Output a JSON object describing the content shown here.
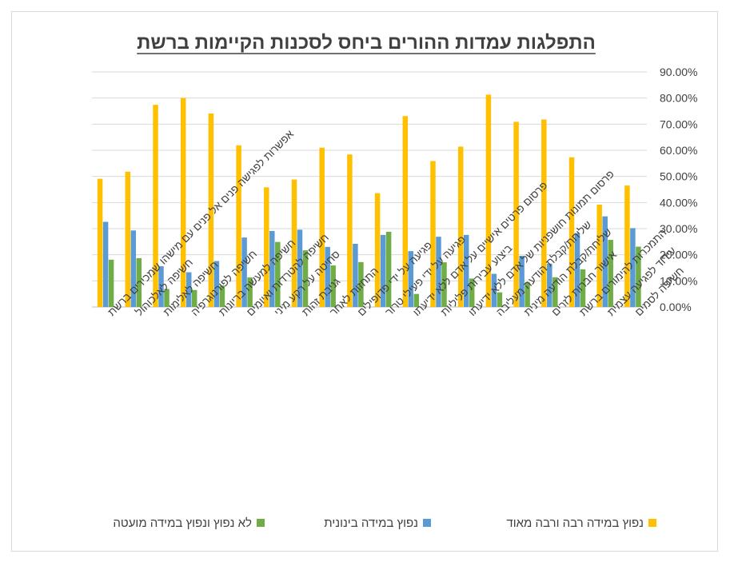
{
  "chart_data": {
    "type": "bar",
    "title": "התפלגות עמדות ההורים ביחס לסכנות הקיימות ברשת",
    "xlabel": "",
    "ylabel": "",
    "ylim": [
      0,
      90
    ],
    "yticks": [
      "0.00%",
      "10.00%",
      "20.00%",
      "30.00%",
      "40.00%",
      "50.00%",
      "60.00%",
      "70.00%",
      "80.00%",
      "90.00%"
    ],
    "grid": true,
    "legend": "bottom",
    "categories": [
      "חשיפה לסמים",
      "עידוד לפגיעה עצמית",
      "התמכרות להימורים ברשת",
      "אישור חברות לזרים",
      "שליחת/קבלת הודעה מינית",
      "שליחת/קבלת הודעה מעליבה",
      "פרסום תמונות חושפניות של אדם ללא ידיעתו",
      "ביצוע עבירות פליליות",
      "פרסום פרטים אישיים על אדם ללא ידיעתו",
      "פגיעה על ידי פעילי טרור",
      "פגיעה על ידי פדופילים",
      "התחזות לאחר",
      "גניבת זהות",
      "סחיטה על רקע מיני",
      "חשיפה להטרדות ואיומים",
      "חשיפה למעשה בריונות",
      "חשיפה לפורנוגרפיה",
      "חשיפה לאלימות",
      "חשיפה לאלכוהול",
      "אפשרות לפגישה פנים אל פנים עם מישהו שמכירים ברשת"
    ],
    "series": [
      {
        "name": "נפוץ במידה רבה ורבה מאוד",
        "color": "#FFC000",
        "values": [
          46.5,
          39.2,
          57.3,
          71.8,
          70.9,
          81.3,
          61.4,
          55.9,
          73.1,
          43.6,
          58.4,
          61.0,
          48.8,
          45.8,
          61.9,
          74.1,
          80.0,
          77.4,
          51.8,
          49.1
        ]
      },
      {
        "name": "נפוץ במידה בינונית",
        "color": "#5B9BD5",
        "values": [
          30.2,
          34.7,
          28.3,
          16.6,
          19.6,
          12.7,
          27.6,
          26.9,
          21.4,
          27.6,
          24.2,
          23.0,
          29.6,
          29.1,
          26.6,
          17.6,
          13.3,
          15.6,
          29.3,
          32.6
        ]
      },
      {
        "name": "לא נפוץ ונפוץ במידה מועטה",
        "color": "#70AD47",
        "values": [
          23.1,
          25.7,
          14.4,
          11.4,
          9.4,
          5.6,
          10.9,
          17.1,
          5.0,
          28.8,
          17.2,
          15.9,
          21.7,
          24.9,
          11.3,
          8.2,
          6.5,
          6.9,
          18.7,
          18.1
        ]
      }
    ]
  }
}
